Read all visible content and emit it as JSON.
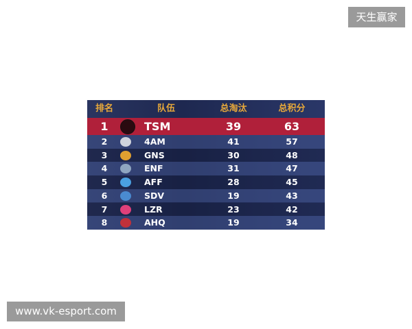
{
  "watermarks": {
    "top": "天生赢家",
    "bottom": "www.vk-esport.com"
  },
  "table": {
    "headers": [
      "排名",
      "队伍",
      "总淘汰",
      "总积分"
    ],
    "rows": [
      {
        "rank": "1",
        "team": "TSM",
        "eliminations": "39",
        "points": "63",
        "logo_color": "#2a0a10"
      },
      {
        "rank": "2",
        "team": "4AM",
        "eliminations": "41",
        "points": "57",
        "logo_color": "#cfd3dc"
      },
      {
        "rank": "3",
        "team": "GNS",
        "eliminations": "30",
        "points": "48",
        "logo_color": "#e0a030"
      },
      {
        "rank": "4",
        "team": "ENF",
        "eliminations": "31",
        "points": "47",
        "logo_color": "#8fa6c0"
      },
      {
        "rank": "5",
        "team": "AFF",
        "eliminations": "28",
        "points": "45",
        "logo_color": "#4aa0e0"
      },
      {
        "rank": "6",
        "team": "SDV",
        "eliminations": "19",
        "points": "43",
        "logo_color": "#4a8ad0"
      },
      {
        "rank": "7",
        "team": "LZR",
        "eliminations": "23",
        "points": "42",
        "logo_color": "#e0407a"
      },
      {
        "rank": "8",
        "team": "AHQ",
        "eliminations": "19",
        "points": "34",
        "logo_color": "#c0303a"
      }
    ],
    "colors": {
      "header_text": "#e8a93a",
      "highlight_row": "#b0203a"
    }
  }
}
